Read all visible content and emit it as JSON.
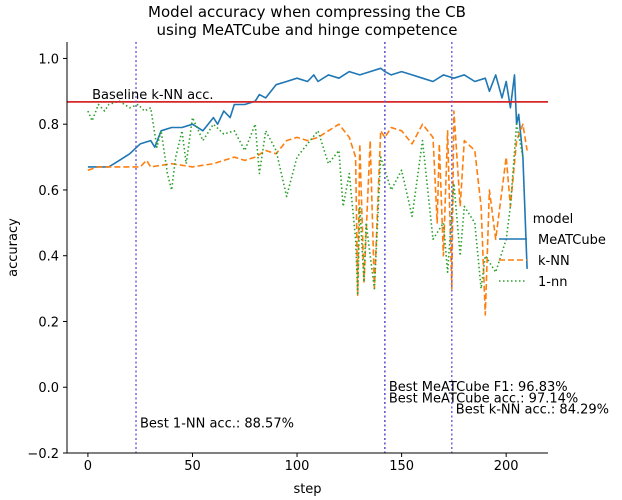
{
  "chart_data": {
    "type": "line",
    "title": [
      "Model accuracy when compressing the CB",
      "using MeATCube and hinge competence"
    ],
    "xlabel": "step",
    "ylabel": "accuracy",
    "xlim": [
      -10,
      220
    ],
    "ylim": [
      -0.2,
      1.05
    ],
    "xticks": [
      0,
      50,
      100,
      150,
      200
    ],
    "yticks": [
      -0.2,
      0.0,
      0.2,
      0.4,
      0.6,
      0.8,
      1.0
    ],
    "ytick_labels": [
      "−0.2",
      "0.0",
      "0.2",
      "0.4",
      "0.6",
      "0.8",
      "1.0"
    ],
    "grid": false,
    "legend": {
      "title": "model",
      "placement": "right",
      "entries": [
        "MeATCube",
        "k-NN",
        "1-nn"
      ]
    },
    "series": [
      {
        "name": "MeATCube",
        "color": "#1f77b4",
        "style": "solid",
        "x": [
          0,
          5,
          10,
          15,
          20,
          25,
          30,
          32,
          35,
          40,
          45,
          50,
          55,
          60,
          62,
          65,
          68,
          70,
          75,
          80,
          82,
          85,
          90,
          95,
          100,
          105,
          108,
          110,
          115,
          120,
          125,
          130,
          135,
          140,
          142,
          145,
          150,
          155,
          160,
          165,
          170,
          175,
          180,
          185,
          190,
          192,
          195,
          198,
          200,
          202,
          204,
          205,
          206,
          208,
          210
        ],
        "y": [
          0.67,
          0.67,
          0.67,
          0.69,
          0.71,
          0.74,
          0.75,
          0.73,
          0.78,
          0.79,
          0.79,
          0.8,
          0.78,
          0.82,
          0.8,
          0.84,
          0.82,
          0.86,
          0.86,
          0.87,
          0.89,
          0.88,
          0.92,
          0.93,
          0.94,
          0.93,
          0.95,
          0.93,
          0.95,
          0.94,
          0.96,
          0.95,
          0.96,
          0.97,
          0.96,
          0.95,
          0.96,
          0.95,
          0.94,
          0.93,
          0.95,
          0.94,
          0.95,
          0.93,
          0.94,
          0.9,
          0.95,
          0.88,
          0.93,
          0.85,
          0.95,
          0.8,
          0.83,
          0.7,
          0.36
        ]
      },
      {
        "name": "k-NN",
        "color": "#ff7f0e",
        "style": "dashed",
        "x": [
          0,
          5,
          10,
          20,
          25,
          28,
          30,
          40,
          50,
          60,
          65,
          70,
          75,
          80,
          85,
          90,
          95,
          100,
          105,
          110,
          115,
          120,
          125,
          128,
          129,
          130,
          132,
          135,
          137,
          140,
          142,
          145,
          150,
          155,
          160,
          165,
          167,
          168,
          170,
          172,
          174,
          175,
          178,
          180,
          185,
          188,
          190,
          192,
          195,
          198,
          200,
          202,
          205,
          208,
          210
        ],
        "y": [
          0.66,
          0.67,
          0.67,
          0.67,
          0.67,
          0.69,
          0.67,
          0.68,
          0.67,
          0.68,
          0.69,
          0.7,
          0.69,
          0.7,
          0.72,
          0.71,
          0.75,
          0.76,
          0.75,
          0.76,
          0.78,
          0.8,
          0.76,
          0.7,
          0.28,
          0.74,
          0.32,
          0.75,
          0.3,
          0.78,
          0.76,
          0.79,
          0.78,
          0.74,
          0.8,
          0.76,
          0.5,
          0.74,
          0.4,
          0.78,
          0.3,
          0.84,
          0.55,
          0.75,
          0.72,
          0.55,
          0.22,
          0.6,
          0.45,
          0.6,
          0.7,
          0.55,
          0.75,
          0.8,
          0.72
        ]
      },
      {
        "name": "1-nn",
        "color": "#2ca02c",
        "style": "dotted",
        "x": [
          0,
          2,
          5,
          8,
          10,
          15,
          20,
          24,
          27,
          30,
          33,
          35,
          38,
          40,
          42,
          45,
          47,
          50,
          55,
          60,
          65,
          70,
          75,
          80,
          82,
          85,
          90,
          95,
          100,
          105,
          110,
          115,
          120,
          122,
          125,
          128,
          129,
          130,
          132,
          133,
          135,
          137,
          140,
          145,
          150,
          155,
          160,
          165,
          170,
          172,
          175,
          178,
          180,
          185,
          188,
          190,
          195,
          200,
          202,
          205,
          208
        ],
        "y": [
          0.84,
          0.81,
          0.86,
          0.84,
          0.86,
          0.87,
          0.85,
          0.86,
          0.84,
          0.85,
          0.73,
          0.78,
          0.65,
          0.6,
          0.7,
          0.78,
          0.68,
          0.82,
          0.75,
          0.8,
          0.77,
          0.78,
          0.72,
          0.8,
          0.65,
          0.78,
          0.72,
          0.58,
          0.7,
          0.74,
          0.78,
          0.68,
          0.72,
          0.55,
          0.65,
          0.45,
          0.28,
          0.55,
          0.32,
          0.5,
          0.4,
          0.3,
          0.7,
          0.6,
          0.66,
          0.52,
          0.75,
          0.45,
          0.5,
          0.35,
          0.62,
          0.4,
          0.55,
          0.5,
          0.3,
          0.4,
          0.35,
          0.45,
          0.55,
          0.8,
          0.7
        ]
      }
    ],
    "reference_lines": [
      {
        "orientation": "horizontal",
        "y": 0.868,
        "color": "#d62728",
        "label": "Baseline k-NN acc."
      },
      {
        "orientation": "vertical",
        "x": 23,
        "color": "#6b5bd6",
        "label": "Best 1-NN acc.: 88.57%",
        "label_y": -0.11
      },
      {
        "orientation": "vertical",
        "x": 142,
        "color": "#0c2a8a",
        "label": "Best MeATCube F1: 96.83%",
        "label_y": 0.0
      },
      {
        "orientation": "vertical",
        "x": 142,
        "color": "#6b5bd6",
        "label": "Best MeATCube acc.: 97.14%",
        "label_y": -0.035
      },
      {
        "orientation": "vertical",
        "x": 174,
        "color": "#6b5bd6",
        "label": "Best k-NN acc.: 84.29%",
        "label_y": -0.068
      }
    ]
  }
}
